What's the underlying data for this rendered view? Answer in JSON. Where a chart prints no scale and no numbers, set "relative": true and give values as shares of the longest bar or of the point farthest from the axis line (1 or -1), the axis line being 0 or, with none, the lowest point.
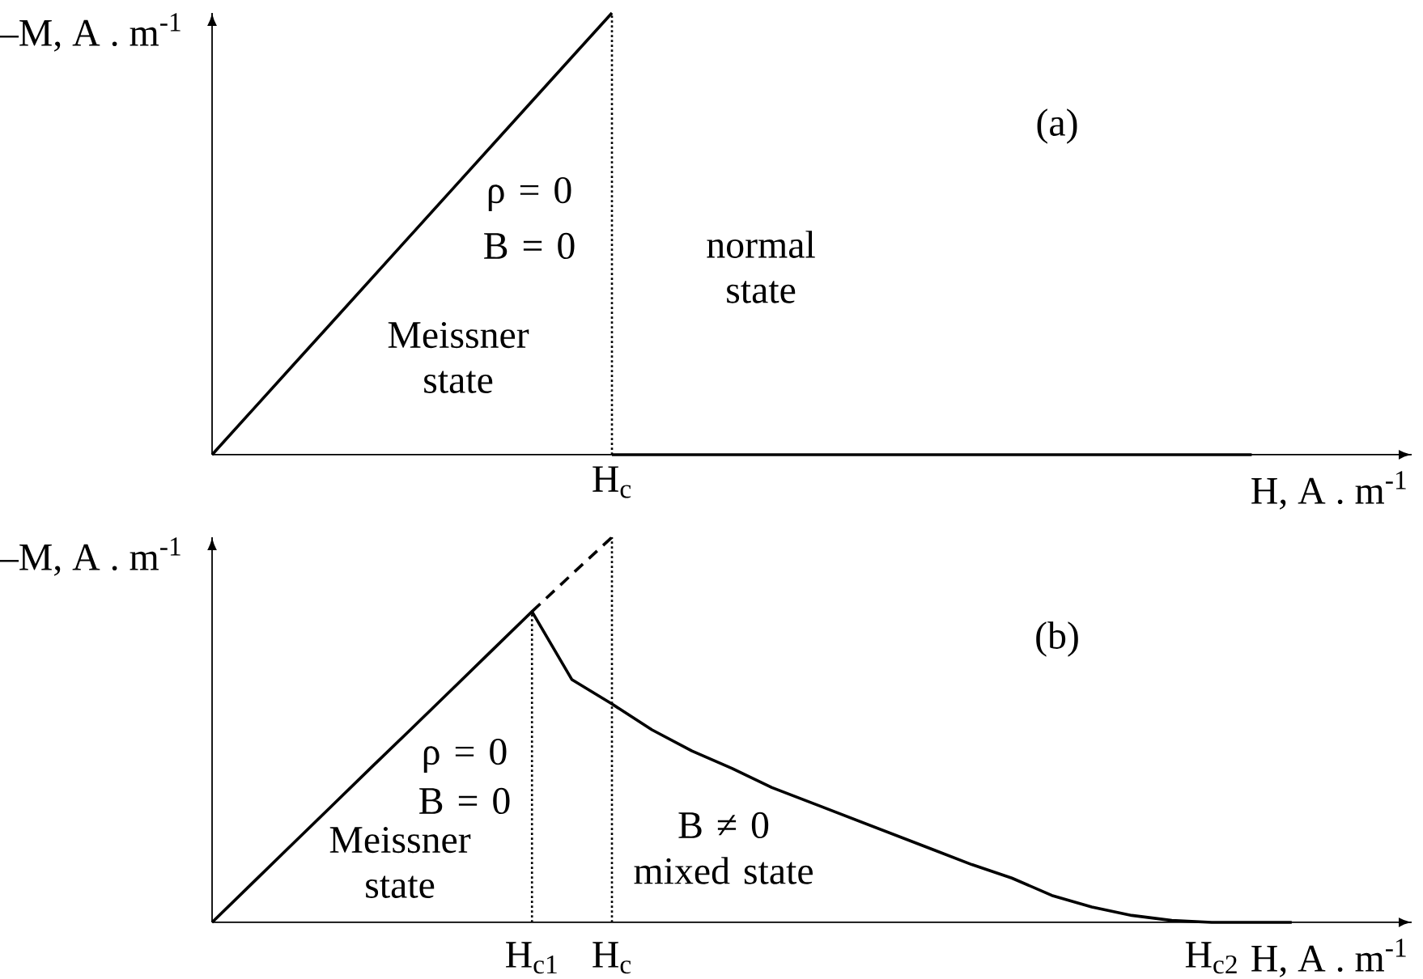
{
  "chart_data": [
    {
      "type": "line",
      "relative": true,
      "ylabel": "–M, A . m$^{-1}$",
      "xlabel": "H, A . m$^{-1}$",
      "categories": [
        null,
        null,
        null,
        null,
        null,
        null,
        null,
        null,
        null,
        null,
        null,
        null,
        null,
        null,
        null,
        null,
        null,
        null,
        null,
        null,
        null,
        null,
        null,
        null,
        null,
        null,
        null
      ],
      "series": [
        {
          "color": "#000000",
          "line_style": "solid",
          "values": [
            0,
            0.1,
            0.2,
            0.3,
            0.4,
            0.5,
            0.6,
            0.7,
            0.8,
            0.9,
            1,
            null,
            null,
            null,
            null,
            null,
            null,
            null,
            null,
            null,
            null,
            null,
            null,
            null,
            null,
            null,
            null
          ]
        },
        {
          "color": "#000000",
          "line_style": "solid",
          "values": [
            null,
            null,
            null,
            null,
            null,
            null,
            null,
            null,
            null,
            null,
            0,
            0,
            0,
            0,
            0,
            0,
            0,
            0,
            0,
            0,
            0,
            0,
            0,
            0,
            0,
            0,
            0
          ]
        }
      ],
      "annotations": [
        "ρ = 0",
        "B = 0",
        "Meissner state",
        "normal state",
        "(a)",
        "H$_{c}$"
      ]
    },
    {
      "type": "line",
      "relative": true,
      "ylabel": "–M, A . m$^{-1}$",
      "xlabel": "H, A . m$^{-1}$",
      "categories": [
        null,
        null,
        null,
        null,
        null,
        null,
        null,
        null,
        "H$_{c1}$",
        null,
        "H$_{c}$",
        null,
        null,
        null,
        null,
        null,
        null,
        null,
        null,
        null,
        null,
        null,
        null,
        null,
        null,
        "H$_{c2}$",
        null,
        null
      ],
      "series": [
        {
          "color": "#000000",
          "line_style": "solid",
          "values": [
            0,
            0.101,
            0.202,
            0.303,
            0.404,
            0.504,
            0.605,
            0.706,
            0.807,
            0.63,
            0.567,
            0.5,
            0.445,
            0.4,
            0.35,
            0.31,
            0.27,
            0.23,
            0.19,
            0.15,
            0.115,
            0.07,
            0.04,
            0.018,
            0.005,
            0,
            0,
            0
          ]
        },
        {
          "color": "#000000",
          "line_style": "dashed",
          "values": [
            null,
            null,
            null,
            null,
            null,
            null,
            null,
            null,
            0.807,
            0.904,
            1,
            null,
            null,
            null,
            null,
            null,
            null,
            null,
            null,
            null,
            null,
            null,
            null,
            null,
            null,
            null,
            null,
            null
          ]
        }
      ],
      "ref_lines": [
        {
          "axis": "x",
          "value": "H$_{c1}$",
          "color": "#000000",
          "line_style": "dotted"
        },
        {
          "axis": "x",
          "value": "H$_{c}$",
          "color": "#000000",
          "line_style": "dotted"
        }
      ],
      "annotations": [
        "(b)",
        "ρ = 0",
        "B = 0",
        "Meissner state",
        "B ≠ 0",
        "mixed state"
      ]
    }
  ]
}
